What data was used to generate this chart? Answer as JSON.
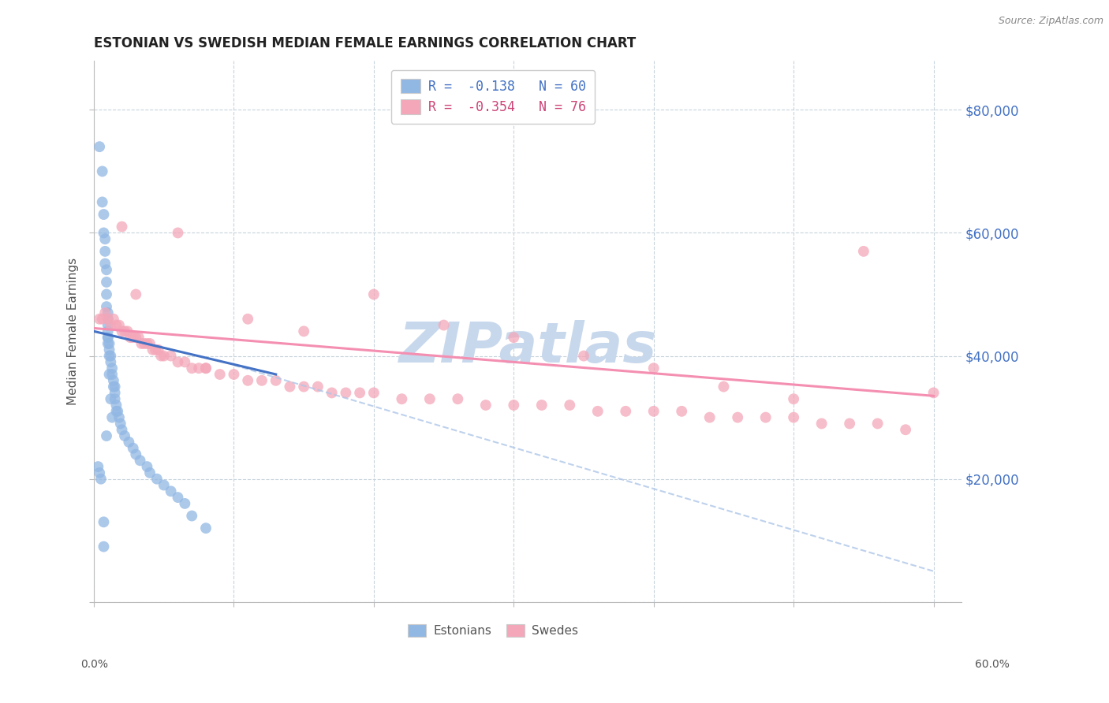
{
  "title": "ESTONIAN VS SWEDISH MEDIAN FEMALE EARNINGS CORRELATION CHART",
  "source": "Source: ZipAtlas.com",
  "ylabel": "Median Female Earnings",
  "right_ytick_labels": [
    "$80,000",
    "$60,000",
    "$40,000",
    "$20,000"
  ],
  "right_ytick_values": [
    80000,
    60000,
    40000,
    20000
  ],
  "legend_bottom": [
    "Estonians",
    "Swedes"
  ],
  "estonian_color": "#91b7e3",
  "swedish_color": "#f4a7b9",
  "estonian_line_color": "#4472c4",
  "swedish_line_color": "#f48fb1",
  "dashed_line_color": "#aec6e8",
  "watermark_text": "ZIPatlas",
  "watermark_color": "#c8d8ec",
  "background_color": "#ffffff",
  "ylim": [
    0,
    88000
  ],
  "xlim": [
    0.0,
    0.62
  ],
  "est_line_x0": 0.0,
  "est_line_y0": 44000,
  "est_line_x1": 0.13,
  "est_line_y1": 37000,
  "swe_line_x0": 0.0,
  "swe_line_y0": 44500,
  "swe_line_x1": 0.6,
  "swe_line_y1": 33500,
  "dash_line_x0": 0.1,
  "dash_line_y0": 38500,
  "dash_line_x1": 0.6,
  "dash_line_y1": 5000,
  "estonian_scatter_x": [
    0.004,
    0.006,
    0.006,
    0.007,
    0.007,
    0.008,
    0.008,
    0.008,
    0.009,
    0.009,
    0.009,
    0.009,
    0.01,
    0.01,
    0.01,
    0.01,
    0.01,
    0.01,
    0.011,
    0.011,
    0.011,
    0.012,
    0.012,
    0.013,
    0.013,
    0.014,
    0.014,
    0.015,
    0.015,
    0.015,
    0.016,
    0.016,
    0.017,
    0.018,
    0.019,
    0.02,
    0.022,
    0.025,
    0.028,
    0.03,
    0.033,
    0.038,
    0.04,
    0.045,
    0.05,
    0.055,
    0.06,
    0.065,
    0.07,
    0.08,
    0.003,
    0.004,
    0.005,
    0.007,
    0.007,
    0.009,
    0.01,
    0.011,
    0.012,
    0.013
  ],
  "estonian_scatter_y": [
    74000,
    70000,
    65000,
    63000,
    60000,
    59000,
    57000,
    55000,
    54000,
    52000,
    50000,
    48000,
    47000,
    46000,
    45000,
    44000,
    43000,
    42000,
    42000,
    41000,
    40000,
    40000,
    39000,
    38000,
    37000,
    36000,
    35000,
    35000,
    34000,
    33000,
    32000,
    31000,
    31000,
    30000,
    29000,
    28000,
    27000,
    26000,
    25000,
    24000,
    23000,
    22000,
    21000,
    20000,
    19000,
    18000,
    17000,
    16000,
    14000,
    12000,
    22000,
    21000,
    20000,
    13000,
    9000,
    27000,
    43000,
    37000,
    33000,
    30000
  ],
  "swedish_scatter_x": [
    0.004,
    0.006,
    0.008,
    0.01,
    0.012,
    0.014,
    0.016,
    0.018,
    0.02,
    0.022,
    0.024,
    0.026,
    0.028,
    0.03,
    0.032,
    0.034,
    0.036,
    0.038,
    0.04,
    0.042,
    0.044,
    0.046,
    0.048,
    0.05,
    0.055,
    0.06,
    0.065,
    0.07,
    0.075,
    0.08,
    0.09,
    0.1,
    0.11,
    0.12,
    0.13,
    0.14,
    0.15,
    0.16,
    0.17,
    0.18,
    0.19,
    0.2,
    0.22,
    0.24,
    0.26,
    0.28,
    0.3,
    0.32,
    0.34,
    0.36,
    0.38,
    0.4,
    0.42,
    0.44,
    0.46,
    0.48,
    0.5,
    0.52,
    0.54,
    0.56,
    0.58,
    0.6,
    0.11,
    0.15,
    0.2,
    0.25,
    0.3,
    0.35,
    0.4,
    0.45,
    0.5,
    0.55,
    0.02,
    0.03,
    0.06,
    0.08
  ],
  "swedish_scatter_y": [
    46000,
    46000,
    47000,
    46000,
    45000,
    46000,
    45000,
    45000,
    44000,
    44000,
    44000,
    43000,
    43000,
    43000,
    43000,
    42000,
    42000,
    42000,
    42000,
    41000,
    41000,
    41000,
    40000,
    40000,
    40000,
    39000,
    39000,
    38000,
    38000,
    38000,
    37000,
    37000,
    36000,
    36000,
    36000,
    35000,
    35000,
    35000,
    34000,
    34000,
    34000,
    34000,
    33000,
    33000,
    33000,
    32000,
    32000,
    32000,
    32000,
    31000,
    31000,
    31000,
    31000,
    30000,
    30000,
    30000,
    30000,
    29000,
    29000,
    29000,
    28000,
    34000,
    46000,
    44000,
    50000,
    45000,
    43000,
    40000,
    38000,
    35000,
    33000,
    57000,
    61000,
    50000,
    60000,
    38000
  ]
}
